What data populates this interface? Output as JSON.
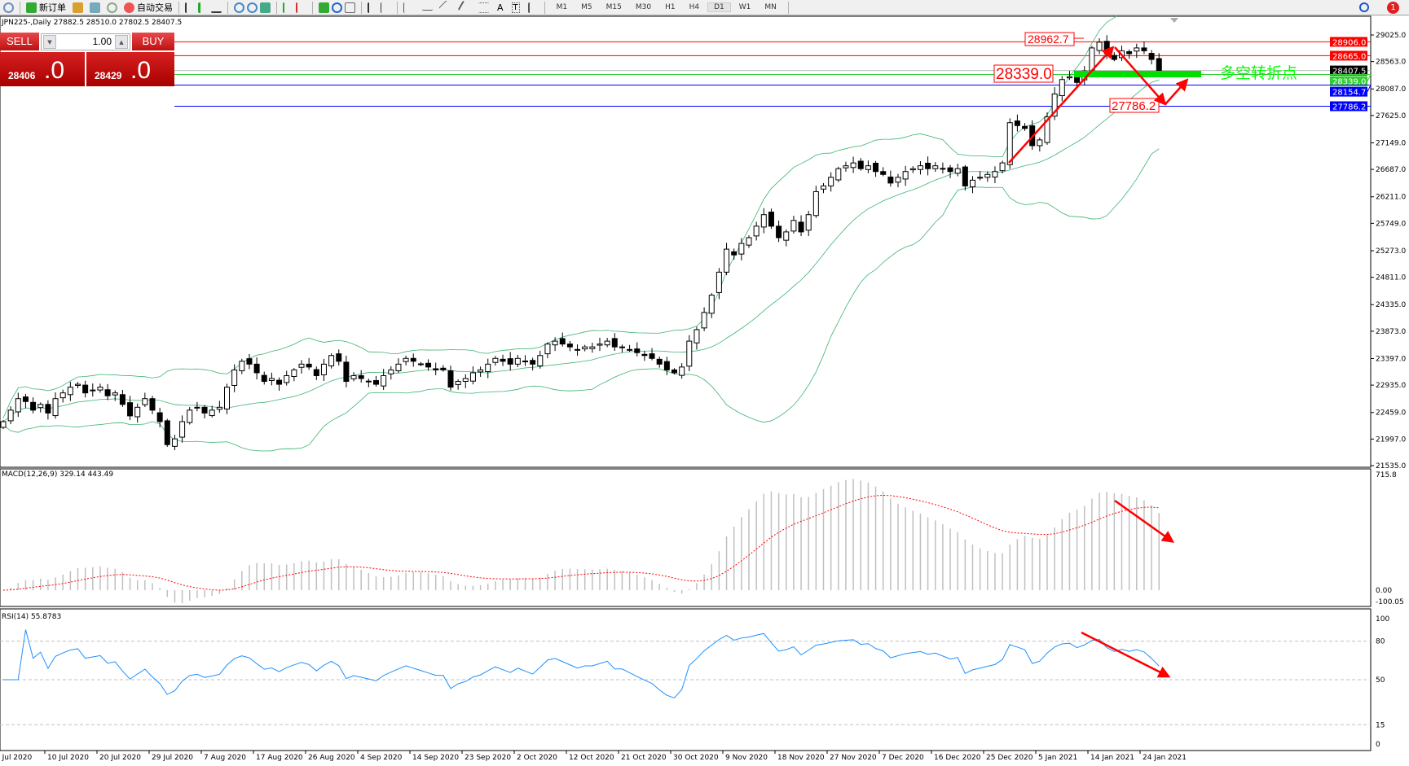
{
  "toolbar": {
    "new_order": "新订单",
    "auto_trading": "自动交易",
    "timeframes": [
      "M1",
      "M5",
      "M15",
      "M30",
      "H1",
      "H4",
      "D1",
      "W1",
      "MN"
    ],
    "active_timeframe": "D1",
    "notification_count": "1"
  },
  "chart_title": "JPN225-,Daily  27882.5 28510.0 27802.5 28407.5",
  "trade_panel": {
    "sell_label": "SELL",
    "buy_label": "BUY",
    "lot": "1.00",
    "sell_price_small": "28406",
    "sell_price_big": ".0",
    "buy_price_small": "28429",
    "buy_price_big": ".0"
  },
  "colors": {
    "resistance": "#ff0000",
    "support": "#0000ff",
    "pivot": "#32cd32",
    "bands": "#3cb371",
    "rsi": "#1e90ff",
    "annotation": "#ff0000",
    "pivot_text": "#00ff00"
  },
  "chart_data": {
    "type": "candlestick",
    "symbol": "JPN225-",
    "timeframe": "Daily",
    "closes": [
      22300,
      22500,
      22700,
      22650,
      22500,
      22600,
      22450,
      22700,
      22800,
      22900,
      22950,
      22800,
      22850,
      22900,
      22750,
      22800,
      22600,
      22400,
      22550,
      22700,
      22500,
      22300,
      21900,
      22000,
      22300,
      22500,
      22550,
      22450,
      22500,
      22550,
      22900,
      23200,
      23350,
      23300,
      23150,
      23000,
      23050,
      22950,
      23100,
      23200,
      23300,
      23250,
      23100,
      23300,
      23450,
      23350,
      23000,
      23100,
      23050,
      23000,
      22950,
      23100,
      23200,
      23300,
      23400,
      23350,
      23300,
      23250,
      23200,
      23200,
      22900,
      23000,
      23050,
      23150,
      23200,
      23300,
      23400,
      23350,
      23300,
      23400,
      23350,
      23300,
      23450,
      23650,
      23700,
      23650,
      23600,
      23550,
      23600,
      23600,
      23650,
      23700,
      23600,
      23600,
      23550,
      23500,
      23450,
      23400,
      23300,
      23200,
      23150,
      23250,
      23700,
      23900,
      24200,
      24500,
      24900,
      25300,
      25200,
      25400,
      25500,
      25700,
      25900,
      25700,
      25500,
      25600,
      25800,
      25600,
      25900,
      26300,
      26400,
      26550,
      26700,
      26750,
      26800,
      26700,
      26750,
      26650,
      26600,
      26450,
      26550,
      26650,
      26700,
      26750,
      26700,
      26750,
      26700,
      26650,
      26700,
      26400,
      26500,
      26550,
      26600,
      26650,
      26800,
      27500,
      27450,
      27400,
      27100,
      27200,
      27600,
      28000,
      28250,
      28300,
      28200,
      28400,
      28800,
      28900,
      28700,
      28600,
      28750,
      28700,
      28800,
      28750,
      28600,
      28407.5
    ],
    "price_axis": [
      "29025.0",
      "28563.0",
      "28087.0",
      "27625.0",
      "27149.0",
      "26687.0",
      "26211.0",
      "25749.0",
      "25273.0",
      "24811.0",
      "24335.0",
      "23873.0",
      "23397.0",
      "22935.0",
      "22459.0",
      "21997.0",
      "21535.0"
    ],
    "price_range": [
      21535,
      29025
    ],
    "date_labels": [
      "1 Jul 2020",
      "10 Jul 2020",
      "20 Jul 2020",
      "29 Jul 2020",
      "7 Aug 2020",
      "17 Aug 2020",
      "26 Aug 2020",
      "4 Sep 2020",
      "14 Sep 2020",
      "23 Sep 2020",
      "2 Oct 2020",
      "12 Oct 2020",
      "21 Oct 2020",
      "30 Oct 2020",
      "9 Nov 2020",
      "18 Nov 2020",
      "27 Nov 2020",
      "7 Dec 2020",
      "16 Dec 2020",
      "25 Dec 2020",
      "5 Jan 2021",
      "14 Jan 2021",
      "24 Jan 2021"
    ],
    "indicators": {
      "bollinger": {
        "period": 20,
        "deviation": 2
      },
      "macd": {
        "label": "MACD(12,26,9) 329.14 443.49",
        "axis": [
          "715.8",
          "0.00",
          "-100.05"
        ],
        "range": [
          -100.05,
          715.8
        ]
      },
      "rsi": {
        "label": "RSI(14) 55.8783",
        "axis": [
          "100",
          "80",
          "50",
          "15",
          "0"
        ],
        "levels": [
          80,
          50,
          15
        ]
      }
    },
    "hlines": [
      {
        "price": 28906.0,
        "label": "28906.0",
        "color": "#ff0000"
      },
      {
        "price": 28665.0,
        "label": "28665.0",
        "color": "#ff0000"
      },
      {
        "price": 28407.5,
        "label": "28407.5",
        "color": "#000000"
      },
      {
        "price": 28339.0,
        "label": "28339.0",
        "color": "#32cd32"
      },
      {
        "price": 28154.7,
        "label": "28154.7",
        "color": "#0000ff"
      },
      {
        "price": 27786.2,
        "label": "27786.2",
        "color": "#0000ff"
      }
    ],
    "annotations": {
      "high_label": "28962.7",
      "pivot_label": "28339.0",
      "low_label": "27786.2",
      "pivot_text": "多空转折点"
    }
  }
}
